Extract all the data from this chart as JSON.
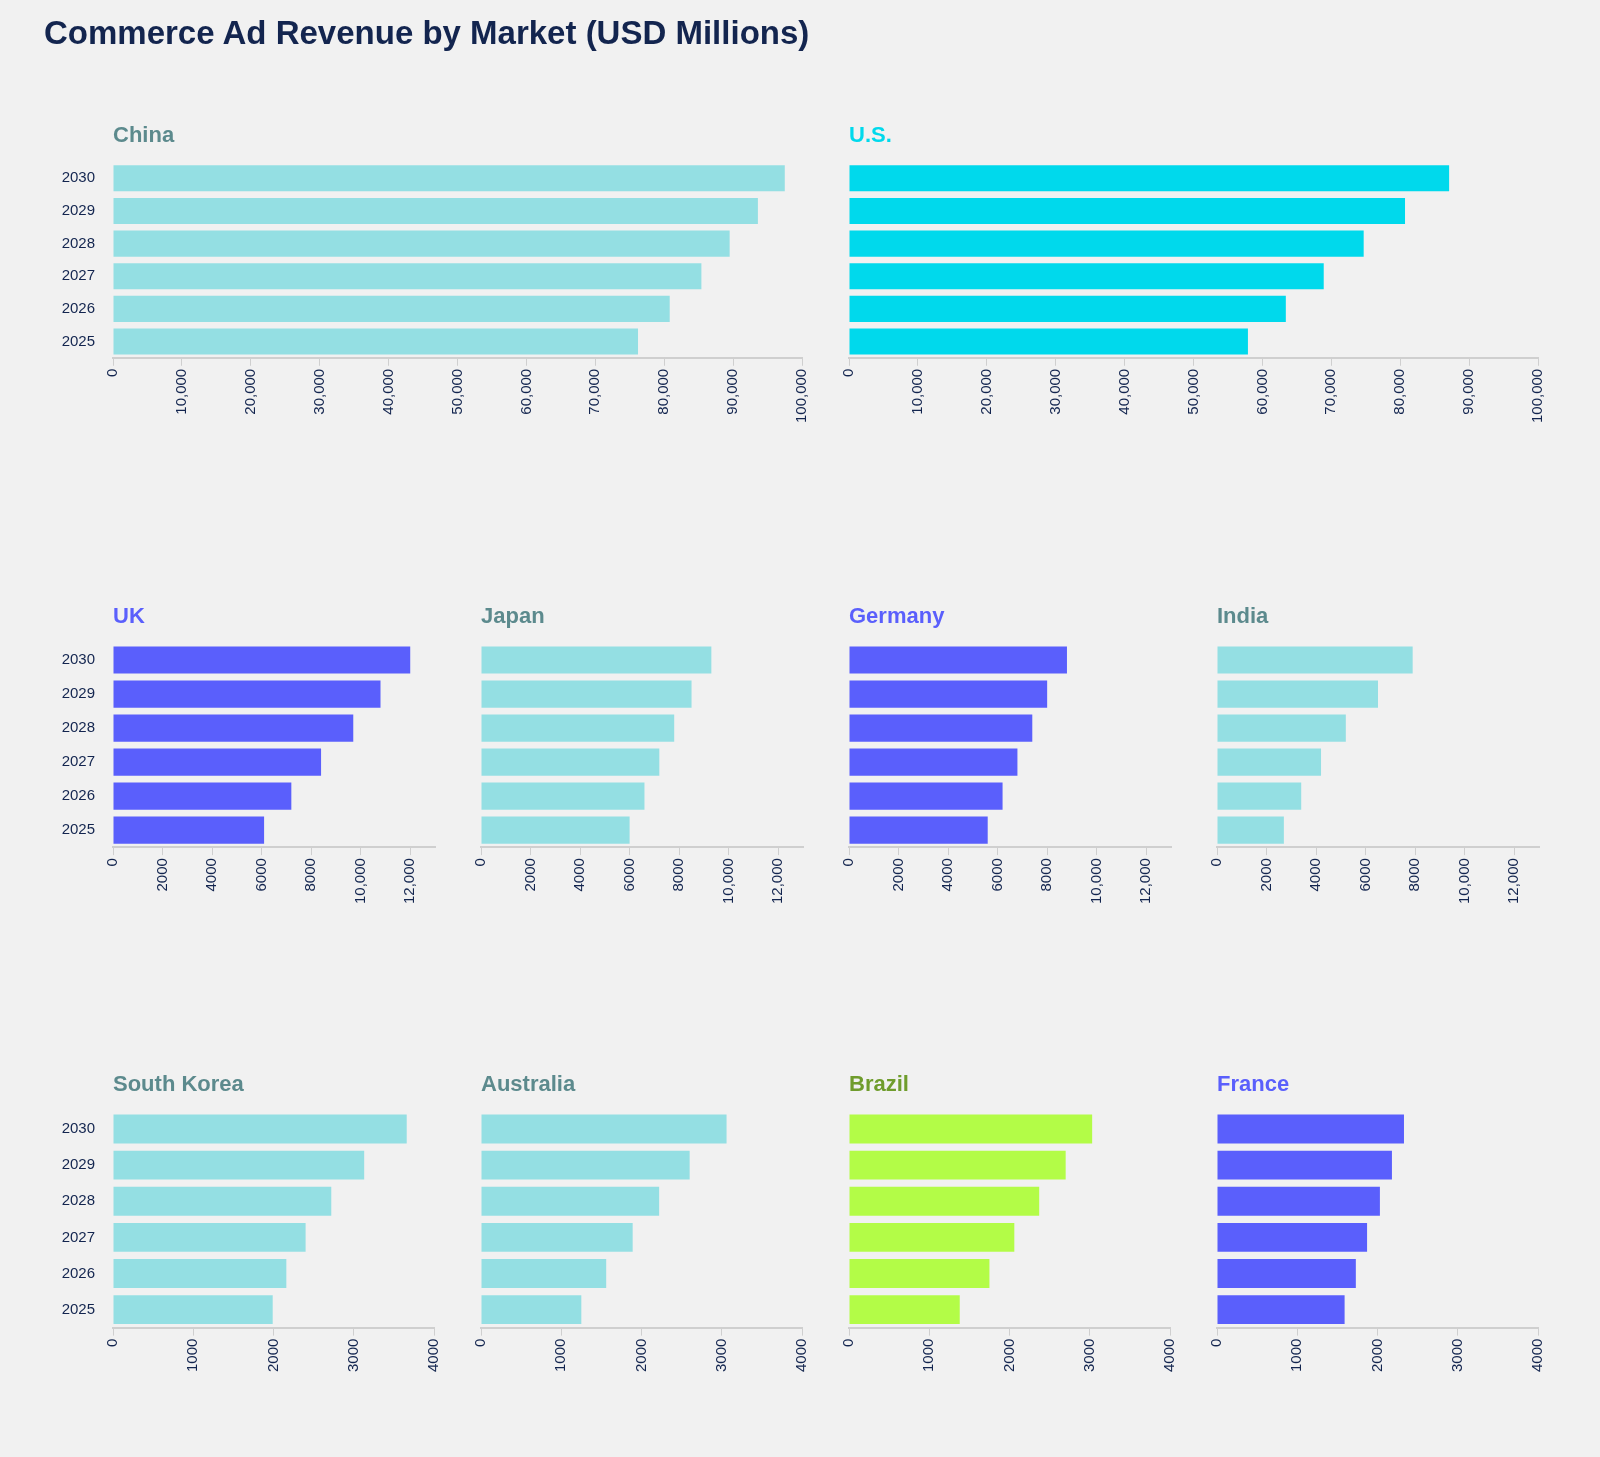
{
  "chart_data": [
    {
      "type": "other",
      "title": "Commerce Ad Revenue by Market (USD Millions)"
    },
    {
      "type": "bar",
      "orientation": "horizontal",
      "title": "China",
      "categories": [
        "2030",
        "2029",
        "2028",
        "2027",
        "2026",
        "2025"
      ],
      "values": [
        97500,
        93600,
        89500,
        85400,
        80800,
        76200
      ],
      "color": "#94dfe3",
      "xlim": [
        0,
        100000
      ],
      "xticks": [
        0,
        {
          "value": 10000,
          "label": "10,000"
        },
        {
          "value": 20000,
          "label": "20,000"
        },
        {
          "value": 30000,
          "label": "30,000"
        },
        {
          "value": 40000,
          "label": "40,000"
        },
        {
          "value": 50000,
          "label": "50,000"
        },
        {
          "value": 60000,
          "label": "60,000"
        },
        {
          "value": 70000,
          "label": "70,000"
        },
        {
          "value": 80000,
          "label": "80,000"
        },
        {
          "value": 90000,
          "label": "90,000"
        },
        {
          "value": 100000,
          "label": "100,000"
        }
      ]
    },
    {
      "type": "bar",
      "orientation": "horizontal",
      "title": "U.S.",
      "categories": [
        "2030",
        "2029",
        "2028",
        "2027",
        "2026",
        "2025"
      ],
      "values": [
        87100,
        80700,
        74700,
        68900,
        63400,
        57900
      ],
      "color": "#00d9ec",
      "xlim": [
        0,
        100000
      ],
      "xticks": [
        0,
        {
          "value": 10000,
          "label": "10,000"
        },
        {
          "value": 20000,
          "label": "20,000"
        },
        {
          "value": 30000,
          "label": "30,000"
        },
        {
          "value": 40000,
          "label": "40,000"
        },
        {
          "value": 50000,
          "label": "50,000"
        },
        {
          "value": 60000,
          "label": "60,000"
        },
        {
          "value": 70000,
          "label": "70,000"
        },
        {
          "value": 80000,
          "label": "80,000"
        },
        {
          "value": 90000,
          "label": "90,000"
        },
        {
          "value": 100000,
          "label": "100,000"
        }
      ],
      "tick_labels": "x"
    },
    {
      "type": "bar",
      "orientation": "horizontal",
      "title": "UK",
      "categories": [
        "2030",
        "2029",
        "2028",
        "2027",
        "2026",
        "2025"
      ],
      "values": [
        12000,
        10800,
        9700,
        8400,
        7200,
        6100
      ],
      "color": "#5a5ffc",
      "xlim": [
        0,
        13000
      ],
      "xticks": [
        0,
        2000,
        4000,
        6000,
        8000,
        {
          "value": 10000,
          "label": "10,000"
        },
        {
          "value": 12000,
          "label": "12,000"
        }
      ]
    },
    {
      "type": "bar",
      "orientation": "horizontal",
      "title": "Japan",
      "categories": [
        "2030",
        "2029",
        "2028",
        "2027",
        "2026",
        "2025"
      ],
      "values": [
        9300,
        8500,
        7800,
        7200,
        6600,
        6000
      ],
      "color": "#94dfe3",
      "xlim": [
        0,
        13000
      ],
      "xticks": [
        0,
        2000,
        4000,
        6000,
        8000,
        {
          "value": 10000,
          "label": "10,000"
        },
        {
          "value": 12000,
          "label": "12,000"
        }
      ],
      "tick_labels": "x"
    },
    {
      "type": "bar",
      "orientation": "horizontal",
      "title": "Germany",
      "categories": [
        "2030",
        "2029",
        "2028",
        "2027",
        "2026",
        "2025"
      ],
      "values": [
        8800,
        8000,
        7400,
        6800,
        6200,
        5600
      ],
      "color": "#5a5ffc",
      "xlim": [
        0,
        13000
      ],
      "xticks": [
        0,
        2000,
        4000,
        6000,
        8000,
        {
          "value": 10000,
          "label": "10,000"
        },
        {
          "value": 12000,
          "label": "12,000"
        }
      ],
      "tick_labels": "x"
    },
    {
      "type": "bar",
      "orientation": "horizontal",
      "title": "India",
      "categories": [
        "2030",
        "2029",
        "2028",
        "2027",
        "2026",
        "2025"
      ],
      "values": [
        7900,
        6500,
        5200,
        4200,
        3400,
        2700
      ],
      "color": "#94dfe3",
      "xlim": [
        0,
        13000
      ],
      "xticks": [
        0,
        2000,
        4000,
        6000,
        8000,
        {
          "value": 10000,
          "label": "10,000"
        },
        {
          "value": 12000,
          "label": "12,000"
        }
      ],
      "tick_labels": "x"
    },
    {
      "type": "bar",
      "orientation": "horizontal",
      "title": "South Korea",
      "categories": [
        "2030",
        "2029",
        "2028",
        "2027",
        "2026",
        "2025"
      ],
      "values": [
        3660,
        3130,
        2720,
        2400,
        2160,
        1990
      ],
      "color": "#94dfe3",
      "xlim": [
        0,
        4000
      ],
      "xticks": [
        0,
        1000,
        2000,
        3000,
        4000
      ]
    },
    {
      "type": "bar",
      "orientation": "horizontal",
      "title": "Australia",
      "categories": [
        "2030",
        "2029",
        "2028",
        "2027",
        "2026",
        "2025"
      ],
      "values": [
        3060,
        2600,
        2220,
        1890,
        1560,
        1250
      ],
      "color": "#94dfe3",
      "xlim": [
        0,
        4000
      ],
      "xticks": [
        0,
        1000,
        2000,
        3000,
        4000
      ],
      "tick_labels": "x"
    },
    {
      "type": "bar",
      "orientation": "horizontal",
      "title": "Brazil",
      "categories": [
        "2030",
        "2029",
        "2028",
        "2027",
        "2026",
        "2025"
      ],
      "values": [
        3030,
        2700,
        2370,
        2060,
        1750,
        1380
      ],
      "color": "#b3fc47",
      "xlim": [
        0,
        4000
      ],
      "xticks": [
        0,
        1000,
        2000,
        3000,
        4000
      ],
      "tick_labels": "x"
    },
    {
      "type": "bar",
      "orientation": "horizontal",
      "title": "France",
      "categories": [
        "2030",
        "2029",
        "2028",
        "2027",
        "2026",
        "2025"
      ],
      "values": [
        2330,
        2180,
        2030,
        1870,
        1730,
        1590
      ],
      "color": "#5a5ffc",
      "xlim": [
        0,
        4000
      ],
      "xticks": [
        0,
        1000,
        2000,
        3000,
        4000
      ],
      "tick_labels": "x"
    }
  ]
}
